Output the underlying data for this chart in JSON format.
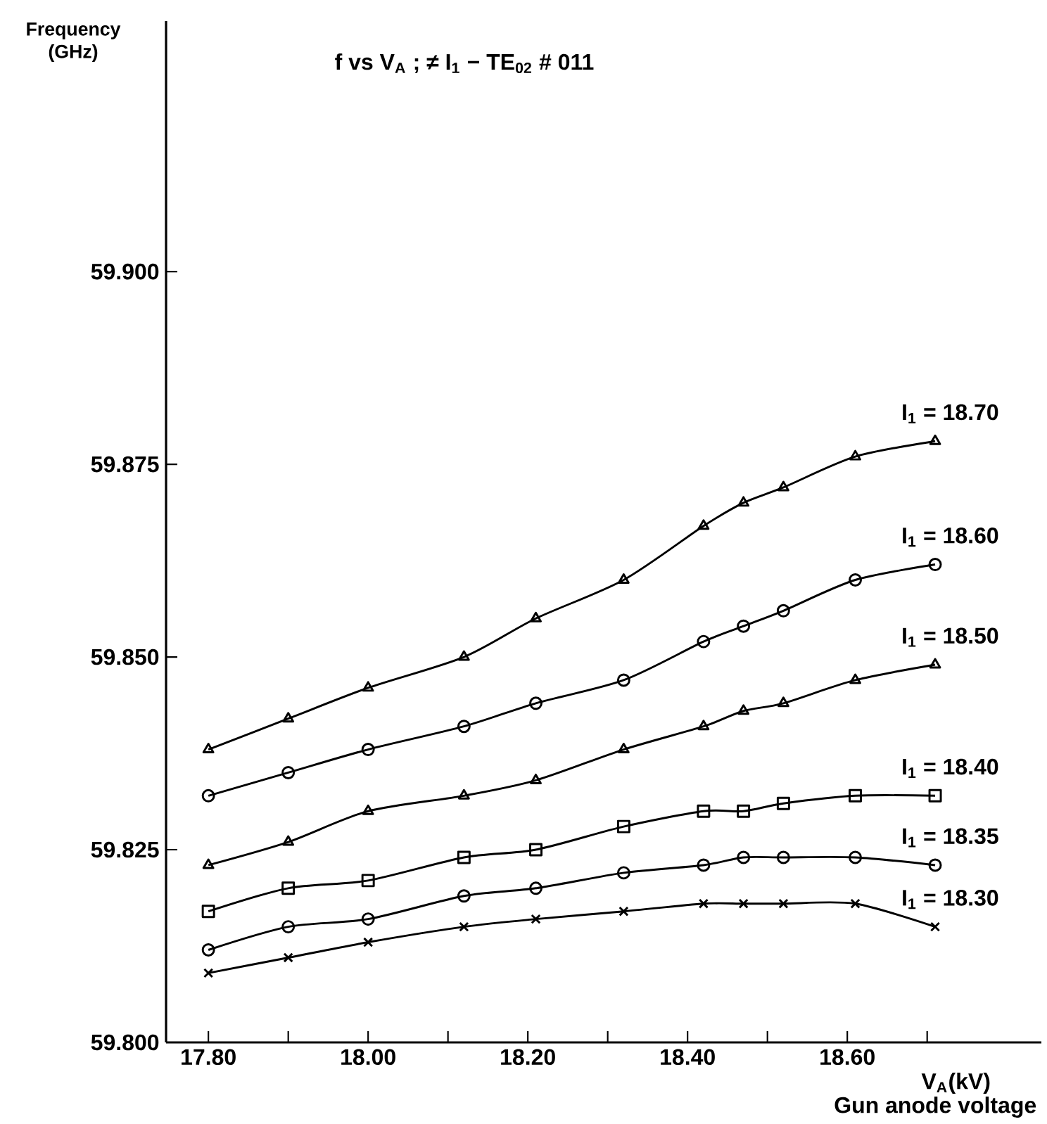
{
  "chart_data": {
    "type": "line",
    "title": "f vs V$_{A}$ ; ≠ I$_{1}$ − TE$_{02}$ # 011",
    "xlabel": "V$_{A}$(kV)",
    "ylabel": "Frequency (GHz)",
    "annotations": [
      "Gun anode voltage"
    ],
    "x": [
      17.8,
      17.9,
      18.0,
      18.12,
      18.21,
      18.32,
      18.42,
      18.47,
      18.52,
      18.61,
      18.71
    ],
    "series": [
      {
        "name": "I$_{1}$ = 18.70",
        "color": "#000000",
        "marker": "triangle",
        "values": [
          59.838,
          59.842,
          59.846,
          59.85,
          59.855,
          59.86,
          59.867,
          59.87,
          59.872,
          59.876,
          59.878
        ]
      },
      {
        "name": "I$_{1}$ = 18.60",
        "color": "#000000",
        "marker": "circle",
        "values": [
          59.832,
          59.835,
          59.838,
          59.841,
          59.844,
          59.847,
          59.852,
          59.854,
          59.856,
          59.86,
          59.862
        ]
      },
      {
        "name": "I$_{1}$ = 18.50",
        "color": "#000000",
        "marker": "triangle",
        "values": [
          59.823,
          59.826,
          59.83,
          59.832,
          59.834,
          59.838,
          59.841,
          59.843,
          59.844,
          59.847,
          59.849
        ]
      },
      {
        "name": "I$_{1}$ = 18.40",
        "color": "#000000",
        "marker": "square",
        "values": [
          59.817,
          59.82,
          59.821,
          59.824,
          59.825,
          59.828,
          59.83,
          59.83,
          59.831,
          59.832,
          59.832
        ]
      },
      {
        "name": "I$_{1}$ = 18.35",
        "color": "#000000",
        "marker": "circle",
        "values": [
          59.812,
          59.815,
          59.816,
          59.819,
          59.82,
          59.822,
          59.823,
          59.824,
          59.824,
          59.824,
          59.823
        ]
      },
      {
        "name": "I$_{1}$ = 18.30",
        "color": "#000000",
        "marker": "cross",
        "values": [
          59.809,
          59.811,
          59.813,
          59.815,
          59.816,
          59.817,
          59.818,
          59.818,
          59.818,
          59.818,
          59.815
        ]
      }
    ],
    "xlim": [
      17.747,
      18.843
    ],
    "ylim": [
      59.8,
      59.9325
    ],
    "xticks": [
      {
        "value": 17.8,
        "label": "17.80"
      },
      {
        "value": 17.9,
        "label": null
      },
      {
        "value": 18.0,
        "label": "18.00"
      },
      {
        "value": 18.1,
        "label": null
      },
      {
        "value": 18.2,
        "label": "18.20"
      },
      {
        "value": 18.3,
        "label": null
      },
      {
        "value": 18.4,
        "label": "18.40"
      },
      {
        "value": 18.5,
        "label": null
      },
      {
        "value": 18.6,
        "label": "18.60"
      },
      {
        "value": 18.7,
        "label": null
      }
    ],
    "yticks": [
      {
        "value": 59.8,
        "label": "59.800"
      },
      {
        "value": 59.825,
        "label": "59.825"
      },
      {
        "value": 59.85,
        "label": "59.850"
      },
      {
        "value": 59.875,
        "label": "59.875"
      },
      {
        "value": 59.9,
        "label": "59.900"
      }
    ],
    "line_style": "solid"
  }
}
